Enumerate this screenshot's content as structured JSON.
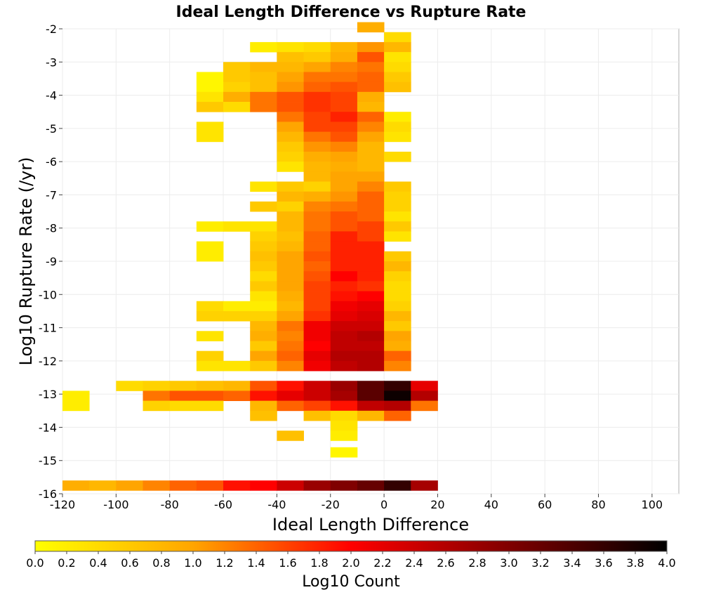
{
  "chart_data": {
    "type": "heatmap",
    "title": "Ideal Length Difference vs Rupture Rate",
    "xlabel": "Ideal Length Difference",
    "ylabel": "Log10 Rupture Rate (/yr)",
    "xlim": [
      -120,
      110
    ],
    "ylim": [
      -16,
      -2
    ],
    "xticks": [
      -120,
      -100,
      -80,
      -60,
      -40,
      -20,
      0,
      20,
      40,
      60,
      80,
      100
    ],
    "yticks": [
      -2,
      -3,
      -4,
      -5,
      -6,
      -7,
      -8,
      -9,
      -10,
      -11,
      -12,
      -13,
      -14,
      -15,
      -16
    ],
    "grid": true,
    "colorscale": {
      "label": "Log10 Count",
      "range": [
        0.0,
        4.0
      ],
      "ticks": [
        0.0,
        0.2,
        0.4,
        0.6,
        0.8,
        1.0,
        1.2,
        1.4,
        1.6,
        1.8,
        2.0,
        2.2,
        2.4,
        2.6,
        2.8,
        3.0,
        3.2,
        3.4,
        3.6,
        3.8,
        4.0
      ],
      "stops": [
        "#ffff00",
        "#ffa500",
        "#ff0000",
        "#800000",
        "#000000"
      ]
    },
    "bin_width_x": 10,
    "bin_height_y": 0.3,
    "cells": [
      [
        -10,
        -2.1,
        0.9
      ],
      [
        0,
        -2.4,
        0.4
      ],
      [
        -50,
        -2.7,
        0.2
      ],
      [
        -40,
        -2.7,
        0.3
      ],
      [
        -30,
        -2.7,
        0.4
      ],
      [
        -20,
        -2.7,
        0.8
      ],
      [
        -10,
        -2.7,
        1.1
      ],
      [
        0,
        -2.7,
        0.8
      ],
      [
        -40,
        -3.0,
        0.7
      ],
      [
        -30,
        -3.0,
        0.6
      ],
      [
        -20,
        -3.0,
        0.9
      ],
      [
        -10,
        -3.0,
        1.5
      ],
      [
        0,
        -3.0,
        0.3
      ],
      [
        -60,
        -3.3,
        0.6
      ],
      [
        -50,
        -3.3,
        0.8
      ],
      [
        -40,
        -3.3,
        0.8
      ],
      [
        -30,
        -3.3,
        1.0
      ],
      [
        -20,
        -3.3,
        1.2
      ],
      [
        -10,
        -3.3,
        1.3
      ],
      [
        0,
        -3.3,
        0.4
      ],
      [
        -70,
        -3.6,
        0.1
      ],
      [
        -60,
        -3.6,
        0.6
      ],
      [
        -50,
        -3.6,
        0.7
      ],
      [
        -40,
        -3.6,
        1.0
      ],
      [
        -30,
        -3.6,
        1.3
      ],
      [
        -20,
        -3.6,
        1.3
      ],
      [
        -10,
        -3.6,
        1.4
      ],
      [
        0,
        -3.6,
        0.6
      ],
      [
        -70,
        -3.9,
        0.1
      ],
      [
        -60,
        -3.9,
        0.5
      ],
      [
        -50,
        -3.9,
        0.7
      ],
      [
        -40,
        -3.9,
        1.1
      ],
      [
        -30,
        -3.9,
        1.4
      ],
      [
        -20,
        -3.9,
        1.5
      ],
      [
        -10,
        -3.9,
        1.4
      ],
      [
        0,
        -3.9,
        0.7
      ],
      [
        -70,
        -4.2,
        0.3
      ],
      [
        -60,
        -4.2,
        0.9
      ],
      [
        -50,
        -4.2,
        1.3
      ],
      [
        -40,
        -4.2,
        1.5
      ],
      [
        -30,
        -4.2,
        1.7
      ],
      [
        -20,
        -4.2,
        1.6
      ],
      [
        -10,
        -4.2,
        0.9
      ],
      [
        -70,
        -4.5,
        0.6
      ],
      [
        -60,
        -4.5,
        0.4
      ],
      [
        -50,
        -4.5,
        1.3
      ],
      [
        -40,
        -4.5,
        1.5
      ],
      [
        -30,
        -4.5,
        1.7
      ],
      [
        -20,
        -4.5,
        1.6
      ],
      [
        -10,
        -4.5,
        0.8
      ],
      [
        -40,
        -4.8,
        1.3
      ],
      [
        -30,
        -4.8,
        1.6
      ],
      [
        -20,
        -4.8,
        1.8
      ],
      [
        -10,
        -4.8,
        1.4
      ],
      [
        0,
        -4.8,
        0.2
      ],
      [
        -70,
        -5.1,
        0.3
      ],
      [
        -40,
        -5.1,
        1.0
      ],
      [
        -30,
        -5.1,
        1.6
      ],
      [
        -20,
        -5.1,
        1.6
      ],
      [
        -10,
        -5.1,
        1.2
      ],
      [
        0,
        -5.1,
        0.4
      ],
      [
        -70,
        -5.4,
        0.3
      ],
      [
        -40,
        -5.4,
        0.8
      ],
      [
        -30,
        -5.4,
        1.3
      ],
      [
        -20,
        -5.4,
        1.5
      ],
      [
        -10,
        -5.4,
        1.0
      ],
      [
        0,
        -5.4,
        0.3
      ],
      [
        -40,
        -5.7,
        0.6
      ],
      [
        -30,
        -5.7,
        1.1
      ],
      [
        -20,
        -5.7,
        1.2
      ],
      [
        -10,
        -5.7,
        0.8
      ],
      [
        -40,
        -6.0,
        0.5
      ],
      [
        -30,
        -6.0,
        0.9
      ],
      [
        -20,
        -6.0,
        1.0
      ],
      [
        -10,
        -6.0,
        0.8
      ],
      [
        0,
        -6.0,
        0.4
      ],
      [
        -40,
        -6.3,
        0.3
      ],
      [
        -30,
        -6.3,
        0.8
      ],
      [
        -20,
        -6.3,
        0.9
      ],
      [
        -10,
        -6.3,
        0.8
      ],
      [
        -30,
        -6.6,
        0.8
      ],
      [
        -20,
        -6.6,
        1.0
      ],
      [
        -10,
        -6.6,
        1.0
      ],
      [
        -50,
        -6.9,
        0.3
      ],
      [
        -40,
        -6.9,
        0.6
      ],
      [
        -30,
        -6.9,
        0.5
      ],
      [
        -20,
        -6.9,
        1.0
      ],
      [
        -10,
        -6.9,
        1.2
      ],
      [
        0,
        -6.9,
        0.6
      ],
      [
        -40,
        -7.2,
        0.8
      ],
      [
        -30,
        -7.2,
        0.9
      ],
      [
        -20,
        -7.2,
        1.1
      ],
      [
        -10,
        -7.2,
        1.4
      ],
      [
        0,
        -7.2,
        0.5
      ],
      [
        -50,
        -7.5,
        0.6
      ],
      [
        -40,
        -7.5,
        0.5
      ],
      [
        -30,
        -7.5,
        1.2
      ],
      [
        -20,
        -7.5,
        1.3
      ],
      [
        -10,
        -7.5,
        1.4
      ],
      [
        0,
        -7.5,
        0.5
      ],
      [
        -40,
        -7.8,
        0.8
      ],
      [
        -30,
        -7.8,
        1.3
      ],
      [
        -20,
        -7.8,
        1.5
      ],
      [
        -10,
        -7.8,
        1.4
      ],
      [
        0,
        -7.8,
        0.3
      ],
      [
        -70,
        -8.1,
        0.2
      ],
      [
        -60,
        -8.1,
        0.3
      ],
      [
        -50,
        -8.1,
        0.3
      ],
      [
        -40,
        -8.1,
        0.8
      ],
      [
        -30,
        -8.1,
        1.3
      ],
      [
        -20,
        -8.1,
        1.5
      ],
      [
        -10,
        -8.1,
        1.6
      ],
      [
        0,
        -8.1,
        0.6
      ],
      [
        -50,
        -8.4,
        0.5
      ],
      [
        -40,
        -8.4,
        0.7
      ],
      [
        -30,
        -8.4,
        1.4
      ],
      [
        -20,
        -8.4,
        1.8
      ],
      [
        -10,
        -8.4,
        1.6
      ],
      [
        0,
        -8.4,
        0.3
      ],
      [
        -70,
        -8.7,
        0.2
      ],
      [
        -50,
        -8.7,
        0.6
      ],
      [
        -40,
        -8.7,
        0.8
      ],
      [
        -30,
        -8.7,
        1.4
      ],
      [
        -20,
        -8.7,
        1.8
      ],
      [
        -10,
        -8.7,
        1.8
      ],
      [
        -70,
        -9.0,
        0.2
      ],
      [
        -50,
        -9.0,
        0.7
      ],
      [
        -40,
        -9.0,
        1.0
      ],
      [
        -30,
        -9.0,
        1.5
      ],
      [
        -20,
        -9.0,
        1.8
      ],
      [
        -10,
        -9.0,
        1.8
      ],
      [
        0,
        -9.0,
        0.6
      ],
      [
        -50,
        -9.3,
        0.6
      ],
      [
        -40,
        -9.3,
        1.0
      ],
      [
        -30,
        -9.3,
        1.4
      ],
      [
        -20,
        -9.3,
        1.8
      ],
      [
        -10,
        -9.3,
        1.8
      ],
      [
        0,
        -9.3,
        0.8
      ],
      [
        -50,
        -9.6,
        0.4
      ],
      [
        -40,
        -9.6,
        1.0
      ],
      [
        -30,
        -9.6,
        1.5
      ],
      [
        -20,
        -9.6,
        2.0
      ],
      [
        -10,
        -9.6,
        1.8
      ],
      [
        0,
        -9.6,
        0.5
      ],
      [
        -50,
        -9.9,
        0.6
      ],
      [
        -40,
        -9.9,
        1.0
      ],
      [
        -30,
        -9.9,
        1.6
      ],
      [
        -20,
        -9.9,
        1.8
      ],
      [
        -10,
        -9.9,
        1.7
      ],
      [
        0,
        -9.9,
        0.4
      ],
      [
        -50,
        -10.2,
        0.3
      ],
      [
        -40,
        -10.2,
        0.9
      ],
      [
        -30,
        -10.2,
        1.6
      ],
      [
        -20,
        -10.2,
        1.9
      ],
      [
        -10,
        -10.2,
        2.0
      ],
      [
        0,
        -10.2,
        0.4
      ],
      [
        -70,
        -10.5,
        0.4
      ],
      [
        -60,
        -10.5,
        0.2
      ],
      [
        -50,
        -10.5,
        0.2
      ],
      [
        -40,
        -10.5,
        0.8
      ],
      [
        -30,
        -10.5,
        1.6
      ],
      [
        -20,
        -10.5,
        2.1
      ],
      [
        -10,
        -10.5,
        2.2
      ],
      [
        0,
        -10.5,
        0.5
      ],
      [
        -70,
        -10.8,
        0.5
      ],
      [
        -60,
        -10.8,
        0.5
      ],
      [
        -50,
        -10.8,
        0.5
      ],
      [
        -40,
        -10.8,
        1.0
      ],
      [
        -30,
        -10.8,
        1.7
      ],
      [
        -20,
        -10.8,
        2.2
      ],
      [
        -10,
        -10.8,
        2.3
      ],
      [
        0,
        -10.8,
        0.8
      ],
      [
        -50,
        -11.1,
        0.8
      ],
      [
        -40,
        -11.1,
        1.3
      ],
      [
        -30,
        -11.1,
        2.1
      ],
      [
        -20,
        -11.1,
        2.4
      ],
      [
        -10,
        -11.1,
        2.4
      ],
      [
        0,
        -11.1,
        0.6
      ],
      [
        -70,
        -11.4,
        0.3
      ],
      [
        -50,
        -11.4,
        0.9
      ],
      [
        -40,
        -11.4,
        1.2
      ],
      [
        -30,
        -11.4,
        2.1
      ],
      [
        -20,
        -11.4,
        2.5
      ],
      [
        -10,
        -11.4,
        2.6
      ],
      [
        0,
        -11.4,
        1.0
      ],
      [
        -50,
        -11.7,
        0.6
      ],
      [
        -40,
        -11.7,
        1.3
      ],
      [
        -30,
        -11.7,
        2.0
      ],
      [
        -20,
        -11.7,
        2.5
      ],
      [
        -10,
        -11.7,
        2.5
      ],
      [
        0,
        -11.7,
        0.9
      ],
      [
        -70,
        -12.0,
        0.5
      ],
      [
        -50,
        -12.0,
        1.0
      ],
      [
        -40,
        -12.0,
        1.4
      ],
      [
        -30,
        -12.0,
        2.2
      ],
      [
        -20,
        -12.0,
        2.6
      ],
      [
        -10,
        -12.0,
        2.6
      ],
      [
        0,
        -12.0,
        1.4
      ],
      [
        -70,
        -12.3,
        0.3
      ],
      [
        -60,
        -12.3,
        0.3
      ],
      [
        -50,
        -12.3,
        0.6
      ],
      [
        -40,
        -12.3,
        1.2
      ],
      [
        -30,
        -12.3,
        2.1
      ],
      [
        -20,
        -12.3,
        2.5
      ],
      [
        -10,
        -12.3,
        2.6
      ],
      [
        0,
        -12.3,
        1.2
      ],
      [
        -100,
        -12.9,
        0.4
      ],
      [
        -90,
        -12.9,
        0.5
      ],
      [
        -80,
        -12.9,
        0.6
      ],
      [
        -70,
        -12.9,
        0.7
      ],
      [
        -60,
        -12.9,
        0.8
      ],
      [
        -50,
        -12.9,
        1.5
      ],
      [
        -40,
        -12.9,
        1.9
      ],
      [
        -30,
        -12.9,
        2.4
      ],
      [
        -20,
        -12.9,
        2.8
      ],
      [
        -10,
        -12.9,
        3.3
      ],
      [
        0,
        -12.9,
        3.6
      ],
      [
        10,
        -12.9,
        2.2
      ],
      [
        -120,
        -13.2,
        0.2
      ],
      [
        -90,
        -13.2,
        1.3
      ],
      [
        -80,
        -13.2,
        1.5
      ],
      [
        -70,
        -13.2,
        1.5
      ],
      [
        -60,
        -13.2,
        1.4
      ],
      [
        -50,
        -13.2,
        1.9
      ],
      [
        -40,
        -13.2,
        2.2
      ],
      [
        -30,
        -13.2,
        2.4
      ],
      [
        -20,
        -13.2,
        2.7
      ],
      [
        -10,
        -13.2,
        3.3
      ],
      [
        0,
        -13.2,
        3.9
      ],
      [
        10,
        -13.2,
        2.6
      ],
      [
        -120,
        -13.5,
        0.2
      ],
      [
        -90,
        -13.5,
        0.5
      ],
      [
        -80,
        -13.5,
        0.4
      ],
      [
        -70,
        -13.5,
        0.4
      ],
      [
        -50,
        -13.5,
        0.8
      ],
      [
        -40,
        -13.5,
        1.4
      ],
      [
        -30,
        -13.5,
        1.6
      ],
      [
        -20,
        -13.5,
        1.9
      ],
      [
        -10,
        -13.5,
        2.5
      ],
      [
        0,
        -13.5,
        2.6
      ],
      [
        10,
        -13.5,
        1.3
      ],
      [
        -50,
        -13.8,
        0.7
      ],
      [
        -30,
        -13.8,
        0.7
      ],
      [
        -20,
        -13.8,
        0.4
      ],
      [
        -10,
        -13.8,
        0.8
      ],
      [
        0,
        -13.8,
        1.4
      ],
      [
        -20,
        -14.1,
        0.3
      ],
      [
        -40,
        -14.4,
        0.7
      ],
      [
        -20,
        -14.4,
        0.2
      ],
      [
        -20,
        -14.9,
        0.1
      ],
      [
        -120,
        -15.9,
        0.9
      ],
      [
        -110,
        -15.9,
        0.8
      ],
      [
        -100,
        -15.9,
        1.0
      ],
      [
        -90,
        -15.9,
        1.2
      ],
      [
        -80,
        -15.9,
        1.4
      ],
      [
        -70,
        -15.9,
        1.5
      ],
      [
        -60,
        -15.9,
        1.9
      ],
      [
        -50,
        -15.9,
        2.0
      ],
      [
        -40,
        -15.9,
        2.4
      ],
      [
        -30,
        -15.9,
        2.8
      ],
      [
        -20,
        -15.9,
        3.0
      ],
      [
        -10,
        -15.9,
        3.2
      ],
      [
        0,
        -15.9,
        3.6
      ],
      [
        10,
        -15.9,
        2.7
      ]
    ]
  }
}
